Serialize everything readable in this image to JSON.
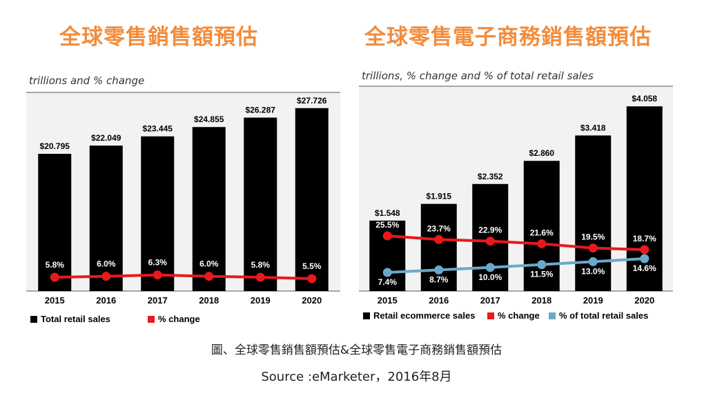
{
  "titles": {
    "left": "全球零售銷售額預估",
    "right": "全球零售電子商務銷售額預估"
  },
  "caption": {
    "line1": "圖、全球零售銷售額預估&全球零售電子商務銷售額預估",
    "line2": "Source :eMarketer，2016年8月"
  },
  "colors": {
    "title": "#f28c3c",
    "bars": "#000000",
    "pct_change": "#e8191c",
    "pct_of_total": "#6aa8c8",
    "panel_bg": "#f2f2f2"
  },
  "chart_data": [
    {
      "type": "bar",
      "subtitle": "trillions and % change",
      "categories": [
        "2015",
        "2016",
        "2017",
        "2018",
        "2019",
        "2020"
      ],
      "series": [
        {
          "name": "Total retail sales",
          "values": [
            20.795,
            22.049,
            23.445,
            24.855,
            26.287,
            27.726
          ],
          "labels": [
            "$20.795",
            "$22.049",
            "$23.445",
            "$24.855",
            "$26.287",
            "$27.726"
          ]
        },
        {
          "name": "% change",
          "type": "line",
          "values": [
            5.8,
            6.0,
            6.3,
            6.0,
            5.8,
            5.5
          ],
          "labels": [
            "5.8%",
            "6.0%",
            "6.3%",
            "6.0%",
            "5.8%",
            "5.5%"
          ]
        }
      ],
      "ylim": [
        0,
        30
      ]
    },
    {
      "type": "bar",
      "subtitle": "trillions, % change and % of total retail sales",
      "categories": [
        "2015",
        "2016",
        "2017",
        "2018",
        "2019",
        "2020"
      ],
      "series": [
        {
          "name": "Retail ecommerce sales",
          "values": [
            1.548,
            1.915,
            2.352,
            2.86,
            3.418,
            4.058
          ],
          "labels": [
            "$1.548",
            "$1.915",
            "$2.352",
            "$2.860",
            "$3.418",
            "$4.058"
          ]
        },
        {
          "name": "% change",
          "type": "line",
          "values": [
            25.5,
            23.7,
            22.9,
            21.6,
            19.5,
            18.7
          ],
          "labels": [
            "25.5%",
            "23.7%",
            "22.9%",
            "21.6%",
            "19.5%",
            "18.7%"
          ]
        },
        {
          "name": "% of total retail sales",
          "type": "line",
          "values": [
            7.4,
            8.7,
            10.0,
            11.5,
            13.0,
            14.6
          ],
          "labels": [
            "7.4%",
            "8.7%",
            "10.0%",
            "11.5%",
            "13.0%",
            "14.6%"
          ]
        }
      ],
      "ylim": [
        0,
        4.5
      ]
    }
  ]
}
